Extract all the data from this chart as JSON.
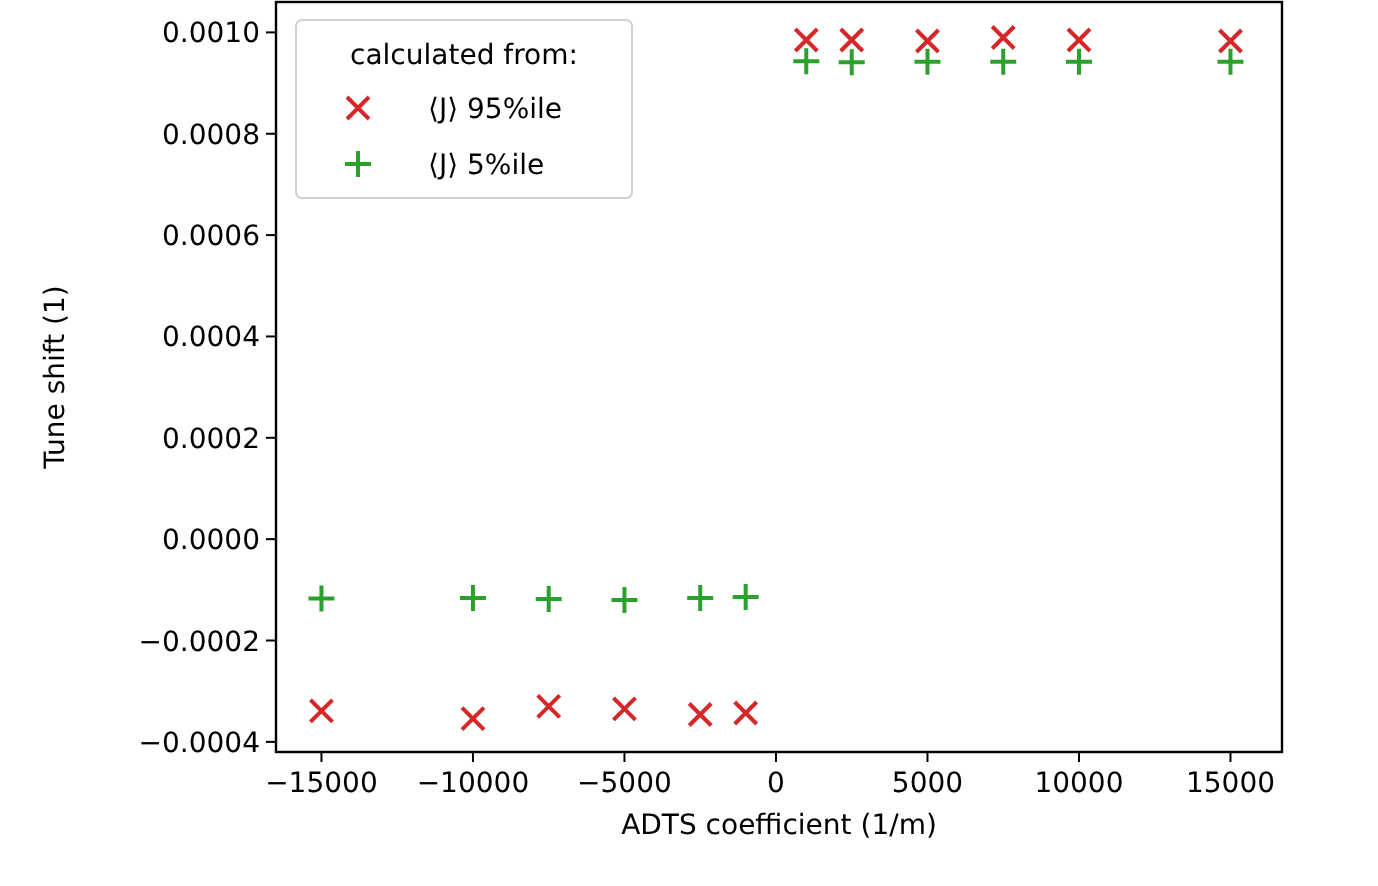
{
  "chart_data": {
    "type": "scatter",
    "xlabel": "ADTS coefficient (1/m)",
    "ylabel": "Tune shift (1)",
    "legend_title": "calculated from:",
    "legend": "top left",
    "grid": false,
    "xlim": [
      -16500,
      16700
    ],
    "xticks": [
      {
        "value": -15000,
        "label": "−15000"
      },
      {
        "value": -10000,
        "label": "−10000"
      },
      {
        "value": -5000,
        "label": "−5000"
      },
      0,
      5000,
      10000,
      15000
    ],
    "ylim": [
      -0.00042,
      0.00106
    ],
    "yticks": [
      {
        "value": -0.0004,
        "label": "−0.0004"
      },
      {
        "value": -0.0002,
        "label": "−0.0002"
      },
      {
        "value": 0,
        "label": "0.0000"
      },
      {
        "value": 0.0002,
        "label": "0.0002"
      },
      {
        "value": 0.0004,
        "label": "0.0004"
      },
      {
        "value": 0.0006,
        "label": "0.0006"
      },
      {
        "value": 0.0008,
        "label": "0.0008"
      },
      {
        "value": 0.001,
        "label": "0.0010"
      }
    ],
    "series": [
      {
        "name": "⟨J⟩ 95%ile",
        "color": "#d62728",
        "marker": "cross",
        "x": [
          -15000,
          -10000,
          -7500,
          -5000,
          -2500,
          -1000,
          1000,
          2500,
          5000,
          7500,
          10000,
          15000
        ],
        "values": [
          -0.000339,
          -0.000354,
          -0.00033,
          -0.000335,
          -0.000346,
          -0.000343,
          0.000985,
          0.000985,
          0.000983,
          0.00099,
          0.000985,
          0.000983
        ]
      },
      {
        "name": "⟨J⟩ 5%ile",
        "color": "#2ca02c",
        "marker": "plus",
        "x": [
          -15000,
          -10000,
          -7500,
          -5000,
          -2500,
          -1000,
          1000,
          2500,
          5000,
          7500,
          10000,
          15000
        ],
        "values": [
          -0.000117,
          -0.000116,
          -0.000118,
          -0.00012,
          -0.000116,
          -0.000114,
          0.000943,
          0.000941,
          0.000942,
          0.000942,
          0.000942,
          0.000942
        ]
      }
    ]
  }
}
